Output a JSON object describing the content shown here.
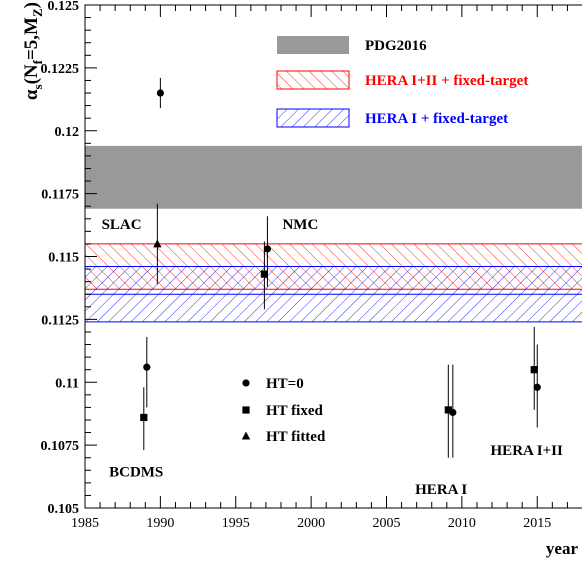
{
  "chart_data": {
    "type": "scatter",
    "ylabel": "α_s(N_f=5,M_Z)",
    "ylabel_parts": {
      "alpha": "α",
      "sub": "s",
      "args_a": "(N",
      "args_sub": "f",
      "args_b": "=5,M",
      "args_sub2": "Z",
      "args_c": ")"
    },
    "xlabel": "year",
    "xlim": [
      1985,
      2018.3
    ],
    "ylim": [
      0.105,
      0.125
    ],
    "x_ticks": [
      1985,
      1990,
      1995,
      2000,
      2005,
      2010,
      2015
    ],
    "y_ticks": [
      0.105,
      0.1075,
      0.11,
      0.1125,
      0.115,
      0.1175,
      0.12,
      0.1225,
      0.125
    ],
    "y_tick_labels": [
      "0.105",
      "0.1075",
      "0.11",
      "0.1125",
      "0.115",
      "0.1175",
      "0.12",
      "0.1225",
      "0.125"
    ],
    "bands": [
      {
        "name": "PDG2016",
        "low": 0.1169,
        "high": 0.1194,
        "color": "#999999",
        "style": "solid"
      },
      {
        "name": "HERA I+II + fixed-target",
        "low": 0.1137,
        "high": 0.1155,
        "color": "#ff0000",
        "style": "hatch-forward"
      },
      {
        "name": "HERA I + fixed-target",
        "low": 0.1124,
        "high": 0.1146,
        "color": "#0000ff",
        "style": "hatch-back"
      }
    ],
    "legend_bands": {
      "position": "top-right",
      "entries": [
        "PDG2016",
        "HERA I+II + fixed-target",
        "HERA I + fixed-target"
      ]
    },
    "series": [
      {
        "name": "HT=0",
        "marker": "circle",
        "points": [
          {
            "x": 1989.1,
            "y": 0.1106,
            "err_low": 0.109,
            "err_high": 0.1118
          },
          {
            "x": 1990.0,
            "y": 0.1215,
            "err_low": 0.1209,
            "err_high": 0.1221
          },
          {
            "x": 1997.1,
            "y": 0.1153,
            "err_low": 0.1138,
            "err_high": 0.1166
          },
          {
            "x": 2009.4,
            "y": 0.1088,
            "err_low": 0.107,
            "err_high": 0.1107
          },
          {
            "x": 2015.0,
            "y": 0.1098,
            "err_low": 0.1082,
            "err_high": 0.1115
          }
        ]
      },
      {
        "name": "HT fixed",
        "marker": "square",
        "points": [
          {
            "x": 1988.9,
            "y": 0.1086,
            "err_low": 0.1073,
            "err_high": 0.1098
          },
          {
            "x": 1996.9,
            "y": 0.1143,
            "err_low": 0.1129,
            "err_high": 0.1156
          },
          {
            "x": 2009.1,
            "y": 0.1089,
            "err_low": 0.107,
            "err_high": 0.1107
          },
          {
            "x": 2014.8,
            "y": 0.1105,
            "err_low": 0.1089,
            "err_high": 0.1122
          }
        ]
      },
      {
        "name": "HT fitted",
        "marker": "triangle",
        "points": [
          {
            "x": 1989.8,
            "y": 0.1155,
            "err_low": 0.1139,
            "err_high": 0.1171
          }
        ]
      }
    ],
    "legend_markers": {
      "position": "bottom-center",
      "entries": [
        "HT=0",
        "HT fixed",
        "HT fitted"
      ]
    },
    "annotations": [
      {
        "text": "SLAC",
        "x": 1986.1,
        "y": 0.1161
      },
      {
        "text": "NMC",
        "x": 1998.1,
        "y": 0.1161
      },
      {
        "text": "BCDMS",
        "x": 1986.6,
        "y": 0.10625
      },
      {
        "text": "HERA I",
        "x": 2006.9,
        "y": 0.10555
      },
      {
        "text": "HERA I+II",
        "x": 2011.9,
        "y": 0.1071
      }
    ],
    "grid": false
  }
}
